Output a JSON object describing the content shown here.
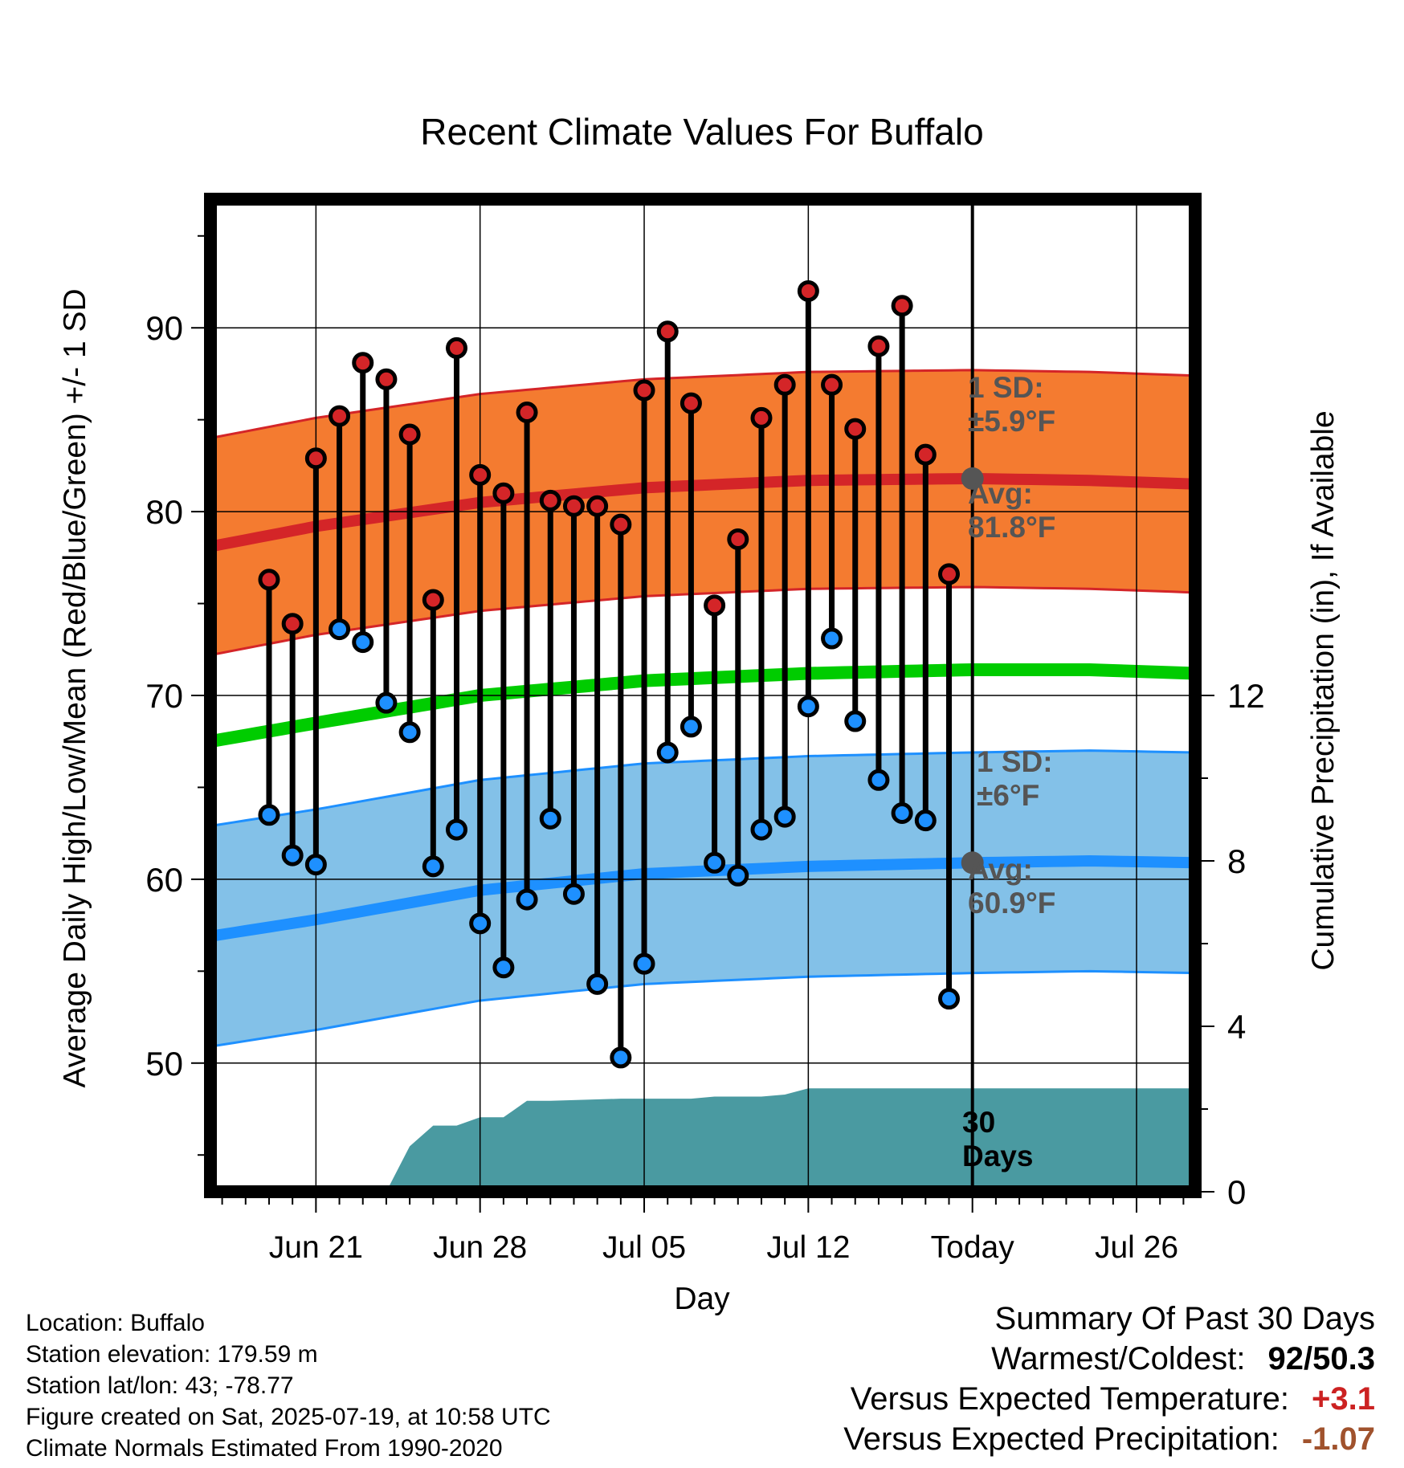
{
  "chart_data": {
    "type": "line",
    "title": "Recent Climate Values For Buffalo",
    "xlabel": "Day",
    "ylabel": "Average Daily High/Low/Mean (Red/Blue/Green) +/- 1 SD",
    "y2label": "Cumulative Precipitation (in), If Available",
    "x_ticks": [
      "Jun 21",
      "Jun 28",
      "Jul 05",
      "Jul 12",
      "Today",
      "Jul 26"
    ],
    "x_range_days": [
      -32.5,
      9.5
    ],
    "ylim": [
      43,
      97
    ],
    "y_ticks": [
      50,
      60,
      70,
      80,
      90
    ],
    "y2lim": [
      0,
      24
    ],
    "y2_ticks": [
      0,
      4,
      8,
      12
    ],
    "grid": true,
    "normals": {
      "high_mean": [
        [
          -32.5,
          78.1
        ],
        [
          -28,
          79.2
        ],
        [
          -21,
          80.5
        ],
        [
          -14,
          81.3
        ],
        [
          -7,
          81.7
        ],
        [
          0,
          81.8
        ],
        [
          5,
          81.7
        ],
        [
          9.5,
          81.5
        ]
      ],
      "high_sd": 5.9,
      "low_mean": [
        [
          -32.5,
          56.9
        ],
        [
          -28,
          57.8
        ],
        [
          -21,
          59.4
        ],
        [
          -14,
          60.3
        ],
        [
          -7,
          60.7
        ],
        [
          0,
          60.9
        ],
        [
          5,
          61
        ],
        [
          9.5,
          60.9
        ]
      ],
      "low_sd": 6,
      "mean": [
        [
          -32.5,
          67.5
        ],
        [
          -28,
          68.5
        ],
        [
          -21,
          70
        ],
        [
          -14,
          70.8
        ],
        [
          -7,
          71.2
        ],
        [
          0,
          71.4
        ],
        [
          5,
          71.4
        ],
        [
          9.5,
          71.2
        ]
      ]
    },
    "daily": {
      "day": [
        -30,
        -29,
        -28,
        -27,
        -26,
        -25,
        -24,
        -23,
        -22,
        -21,
        -20,
        -19,
        -18,
        -17,
        -16,
        -15,
        -14,
        -13,
        -12,
        -11,
        -10,
        -9,
        -8,
        -7,
        -6,
        -5,
        -4,
        -3,
        -2,
        -1
      ],
      "high": [
        76.3,
        73.9,
        82.9,
        85.2,
        88.1,
        87.2,
        84.2,
        75.2,
        88.9,
        82,
        81,
        85.4,
        80.6,
        80.3,
        80.3,
        79.3,
        86.6,
        89.8,
        85.9,
        74.9,
        78.5,
        85.1,
        86.9,
        92,
        86.9,
        84.5,
        89,
        91.2,
        83.1,
        76.6
      ],
      "low": [
        63.5,
        61.3,
        60.8,
        73.6,
        72.9,
        69.6,
        68,
        60.7,
        62.7,
        57.6,
        55.2,
        58.9,
        63.3,
        59.2,
        54.3,
        50.3,
        55.4,
        66.9,
        68.3,
        60.9,
        60.2,
        62.7,
        63.4,
        69.4,
        73.1,
        68.6,
        65.4,
        63.6,
        63.2,
        53.5
      ]
    },
    "precip_cumulative": [
      [
        -25,
        0
      ],
      [
        -24,
        1.1
      ],
      [
        -23,
        1.6
      ],
      [
        -22,
        1.6
      ],
      [
        -21,
        1.8
      ],
      [
        -20,
        1.8
      ],
      [
        -19,
        2.2
      ],
      [
        -18,
        2.2
      ],
      [
        -15,
        2.25
      ],
      [
        -12,
        2.25
      ],
      [
        -11,
        2.3
      ],
      [
        -9,
        2.3
      ],
      [
        -8,
        2.35
      ],
      [
        -7,
        2.5
      ],
      [
        0,
        2.5
      ],
      [
        9.5,
        2.5
      ]
    ],
    "annotations": {
      "high_sd": [
        "1 SD:",
        "±5.9°F"
      ],
      "high_avg": [
        "Avg:",
        "81.8°F"
      ],
      "low_sd": [
        "1 SD:",
        "±6°F"
      ],
      "low_avg": [
        "Avg:",
        "60.9°F"
      ],
      "period": [
        "30",
        "Days"
      ]
    },
    "colors": {
      "high_band": "#f47b30",
      "high_line": "#d42528",
      "high_dot": "#d42528",
      "low_band": "#83c1e8",
      "low_line": "#1e90ff",
      "low_dot": "#1e90ff",
      "mean_line": "#00cc00",
      "precip": "#4a9aa1",
      "annotation": "#555555"
    }
  },
  "info": {
    "location": "Location: Buffalo",
    "elevation": "Station elevation: 179.59 m",
    "latlon": "Station lat/lon: 43; -78.77",
    "created": "Figure created on Sat, 2025-07-19, at 10:58 UTC",
    "normals": "Climate Normals Estimated From 1990-2020"
  },
  "summary": {
    "title": "Summary Of Past 30 Days",
    "warmest_coldest_label": "Warmest/Coldest:",
    "warmest_coldest_value": "92/50.3",
    "temp_label": "Versus Expected Temperature:",
    "temp_value": "+3.1",
    "temp_color": "#cc2222",
    "precip_label": "Versus Expected Precipitation:",
    "precip_value": "-1.07",
    "precip_color": "#a0522d"
  }
}
